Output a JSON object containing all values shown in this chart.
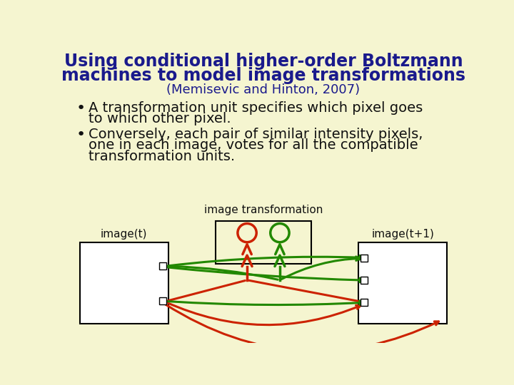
{
  "bg_color": "#f5f5d0",
  "title_line1": "Using conditional higher-order Boltzmann",
  "title_line2": "machines to model image transformations",
  "subtitle": "(Memisevic and Hinton, 2007)",
  "title_color": "#1a1a8c",
  "subtitle_color": "#1a1a8c",
  "bullet1_line1": "A transformation unit specifies which pixel goes",
  "bullet1_line2": "to which other pixel.",
  "bullet2_line1": "Conversely, each pair of similar intensity pixels,",
  "bullet2_line2": "one in each image, votes for all the compatible",
  "bullet2_line3": "transformation units.",
  "text_color": "#111111",
  "diagram_label_center": "image transformation",
  "diagram_label_left": "image(t)",
  "diagram_label_right": "image(t+1)",
  "red_color": "#cc2200",
  "green_color": "#228800",
  "title_fontsize": 17,
  "subtitle_fontsize": 13,
  "bullet_fontsize": 14
}
